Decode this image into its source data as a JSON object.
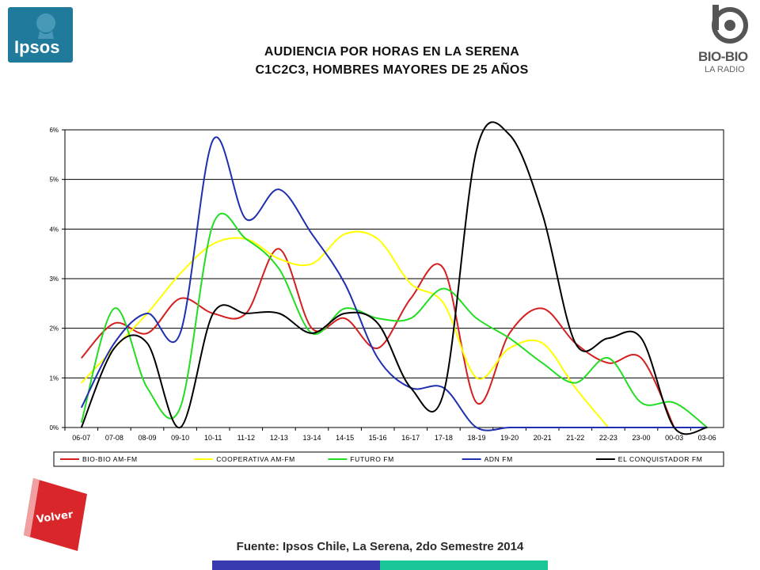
{
  "header": {
    "title_line1": "AUDIENCIA POR HORAS EN LA SERENA",
    "title_line2": "C1C2C3, HOMBRES MAYORES DE 25 AÑOS",
    "left_logo": "Ipsos",
    "right_logo_line1": "BIO-BIO",
    "right_logo_line2": "LA RADIO"
  },
  "footer": {
    "source": "Fuente: Ipsos Chile, La Serena, 2do Semestre 2014",
    "back_button": "Volver"
  },
  "chart_data": {
    "type": "line",
    "categories": [
      "06-07",
      "07-08",
      "08-09",
      "09-10",
      "10-11",
      "11-12",
      "12-13",
      "13-14",
      "14-15",
      "15-16",
      "16-17",
      "17-18",
      "18-19",
      "19-20",
      "20-21",
      "21-22",
      "22-23",
      "23-00",
      "00-03",
      "03-06"
    ],
    "y_ticks": [
      "0%",
      "1%",
      "2%",
      "3%",
      "4%",
      "5%",
      "6%"
    ],
    "ylim": [
      0,
      6
    ],
    "grid": true,
    "legend_position": "bottom",
    "series": [
      {
        "name": "BIO-BIO AM-FM",
        "color": "#d42020",
        "values": [
          1.4,
          2.1,
          1.9,
          2.6,
          2.3,
          2.3,
          3.6,
          2.0,
          2.2,
          1.6,
          2.6,
          3.2,
          0.5,
          1.9,
          2.4,
          1.7,
          1.3,
          1.4,
          0.0,
          null
        ]
      },
      {
        "name": "COOPERATIVA AM-FM",
        "color": "#ffff00",
        "values": [
          0.9,
          1.6,
          2.3,
          3.1,
          3.7,
          3.8,
          3.4,
          3.3,
          3.9,
          3.8,
          2.9,
          2.5,
          1.0,
          1.6,
          1.7,
          0.8,
          0.0,
          null,
          null,
          null
        ]
      },
      {
        "name": "FUTURO FM",
        "color": "#22dd22",
        "values": [
          0.1,
          2.4,
          0.8,
          0.4,
          4.1,
          3.8,
          3.2,
          1.9,
          2.4,
          2.2,
          2.2,
          2.8,
          2.2,
          1.8,
          1.3,
          0.9,
          1.4,
          0.5,
          0.5,
          0.0
        ]
      },
      {
        "name": "ADN FM",
        "color": "#1f2faf",
        "values": [
          0.4,
          1.7,
          2.3,
          1.9,
          5.8,
          4.2,
          4.8,
          3.9,
          2.9,
          1.4,
          0.8,
          0.8,
          0.0,
          0.0,
          0.0,
          0.0,
          0.0,
          0.0,
          0.0,
          0.0
        ]
      },
      {
        "name": "EL CONQUISTADOR FM",
        "color": "#000000",
        "values": [
          0.0,
          1.6,
          1.7,
          0.0,
          2.3,
          2.3,
          2.3,
          1.9,
          2.3,
          2.1,
          0.8,
          0.7,
          5.6,
          5.9,
          4.3,
          1.7,
          1.8,
          1.8,
          0.0,
          0.0
        ]
      }
    ]
  }
}
